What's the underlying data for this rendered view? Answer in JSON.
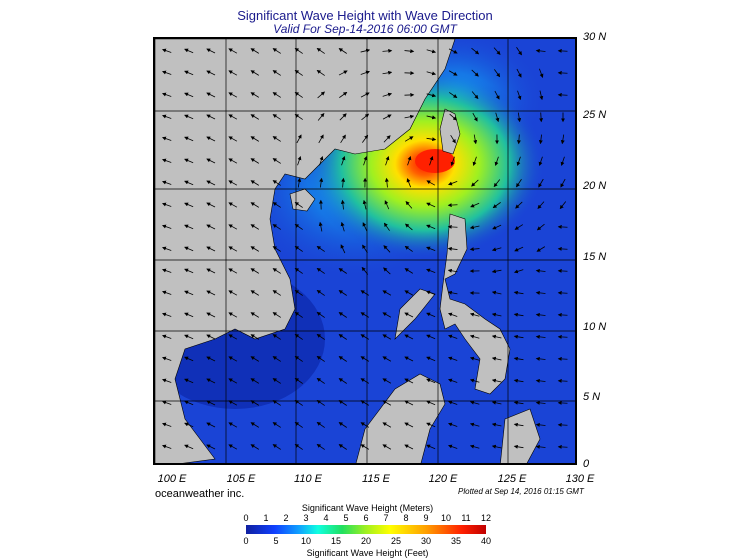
{
  "title": "Significant Wave Height with Wave Direction",
  "subtitle": "Valid For Sep-14-2016 06:00 GMT",
  "lat_labels": [
    "30 N",
    "25 N",
    "20 N",
    "15 N",
    "10 N",
    "5 N",
    "0"
  ],
  "lon_labels": [
    "100 E",
    "105 E",
    "110 E",
    "115 E",
    "120 E",
    "125 E",
    "130 E"
  ],
  "credit": "oceanweather inc.",
  "plotted": "Plotted at Sep 14, 2016 01:15 GMT",
  "legend": {
    "meters_title": "Significant Wave Height (Meters)",
    "feet_title": "Significant Wave Height (Feet)",
    "meters_ticks": [
      "0",
      "1",
      "2",
      "3",
      "4",
      "5",
      "6",
      "7",
      "8",
      "9",
      "10",
      "11",
      "12"
    ],
    "feet_ticks": [
      "0",
      "5",
      "10",
      "15",
      "20",
      "25",
      "30",
      "35",
      "40"
    ]
  },
  "colors": {
    "land": "#c0c0c0",
    "low": "#1a44d6",
    "mid": "#20e060",
    "high": "#ff2000"
  }
}
